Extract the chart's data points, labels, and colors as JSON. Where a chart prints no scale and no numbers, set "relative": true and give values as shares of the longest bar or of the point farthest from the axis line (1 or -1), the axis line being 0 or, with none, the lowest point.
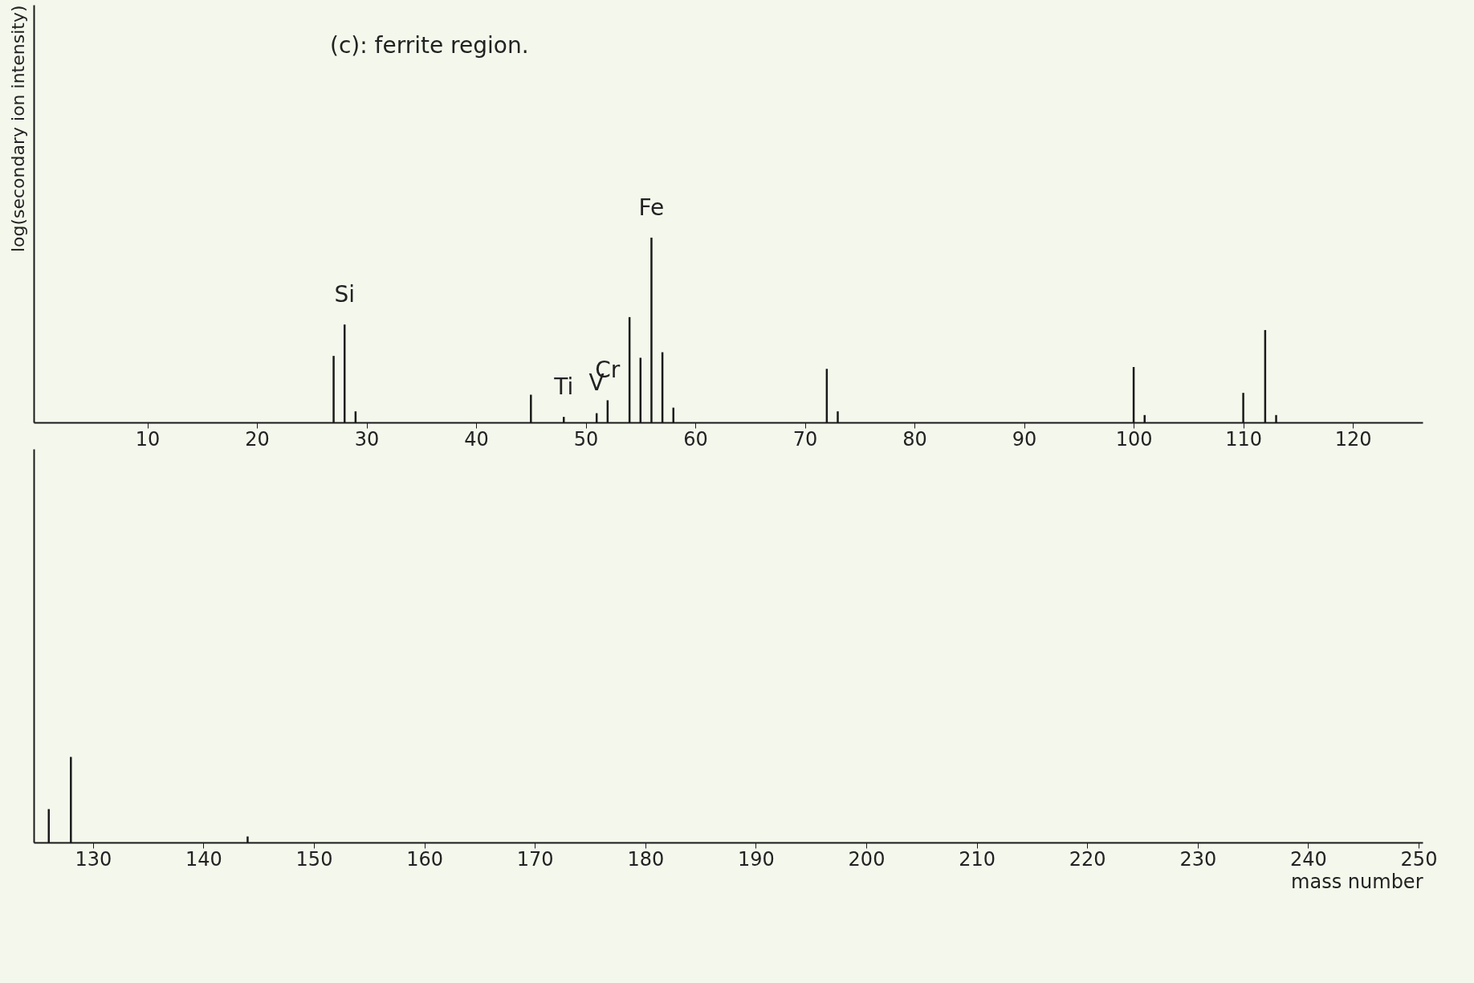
{
  "chart_data": [
    {
      "type": "bar",
      "title": "(c): ferrite region.",
      "ylabel": "log(secondary ion intensity)",
      "relative": true,
      "color": "#1a1a1a",
      "tick_labels": "x",
      "x": [
        27,
        28,
        29,
        45,
        48,
        51,
        52,
        54,
        55,
        56,
        57,
        58,
        72,
        73,
        100,
        101,
        110,
        112,
        113
      ],
      "values": [
        0.36,
        0.53,
        0.06,
        0.15,
        0.03,
        0.05,
        0.12,
        0.57,
        0.35,
        1,
        0.38,
        0.08,
        0.29,
        0.06,
        0.3,
        0.04,
        0.16,
        0.5,
        0.04
      ],
      "xlim": [
        0,
        126
      ],
      "xticks": [
        10,
        20,
        30,
        40,
        50,
        60,
        70,
        80,
        90,
        100,
        110,
        120
      ],
      "annotations": [
        {
          "text": "Si",
          "x": 28,
          "y": 0.53
        },
        {
          "text": "Ti",
          "x": 48,
          "y": 0.03
        },
        {
          "text": "V",
          "x": 51,
          "y": 0.05
        },
        {
          "text": "Cr",
          "x": 52,
          "y": 0.12
        },
        {
          "text": "Fe",
          "x": 56,
          "y": 1
        }
      ]
    },
    {
      "type": "bar",
      "xlabel": "mass number",
      "relative": true,
      "color": "#1a1a1a",
      "tick_labels": "x",
      "x": [
        126,
        128,
        144
      ],
      "values": [
        0.39,
        1,
        0.07
      ],
      "xlim": [
        125,
        250
      ],
      "xticks": [
        130,
        140,
        150,
        160,
        170,
        180,
        190,
        200,
        210,
        220,
        230,
        240,
        250
      ]
    }
  ]
}
